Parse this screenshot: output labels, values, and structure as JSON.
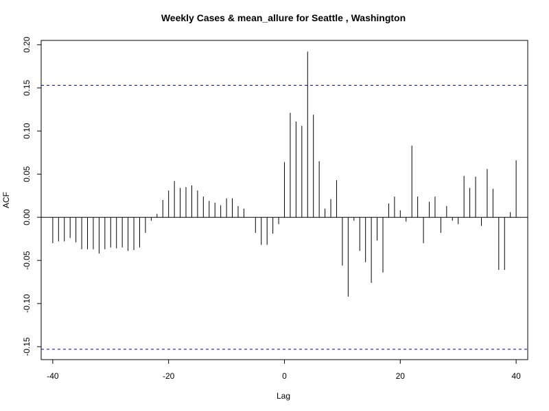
{
  "chart_data": {
    "type": "bar",
    "title": "Weekly Cases & mean_allure for Seattle , Washington",
    "xlabel": "Lag",
    "ylabel": "ACF",
    "xlim": [
      -42,
      42
    ],
    "ylim": [
      -0.165,
      0.205
    ],
    "x_ticks": [
      -40,
      -20,
      0,
      20,
      40
    ],
    "x_tick_labels": [
      "-40",
      "-20",
      "0",
      "20",
      "40"
    ],
    "y_ticks": [
      -0.15,
      -0.1,
      -0.05,
      0.0,
      0.05,
      0.1,
      0.15,
      0.2
    ],
    "y_tick_labels": [
      "-0.15",
      "-0.10",
      "-0.05",
      "0.00",
      "0.05",
      "0.10",
      "0.15",
      "0.20"
    ],
    "confidence_bound": 0.153,
    "bound_color": "#0000cc",
    "bar_color": "#000000",
    "grid": false,
    "x": [
      -40,
      -39,
      -38,
      -37,
      -36,
      -35,
      -34,
      -33,
      -32,
      -31,
      -30,
      -29,
      -28,
      -27,
      -26,
      -25,
      -24,
      -23,
      -22,
      -21,
      -20,
      -19,
      -18,
      -17,
      -16,
      -15,
      -14,
      -13,
      -12,
      -11,
      -10,
      -9,
      -8,
      -7,
      -6,
      -5,
      -4,
      -3,
      -2,
      -1,
      0,
      1,
      2,
      3,
      4,
      5,
      6,
      7,
      8,
      9,
      10,
      11,
      12,
      13,
      14,
      15,
      16,
      17,
      18,
      19,
      20,
      21,
      22,
      23,
      24,
      25,
      26,
      27,
      28,
      29,
      30,
      31,
      32,
      33,
      34,
      35,
      36,
      37,
      38,
      39,
      40
    ],
    "values": [
      -0.03,
      -0.028,
      -0.028,
      -0.024,
      -0.029,
      -0.037,
      -0.037,
      -0.037,
      -0.042,
      -0.037,
      -0.035,
      -0.036,
      -0.035,
      -0.039,
      -0.038,
      -0.035,
      -0.018,
      -0.004,
      0.004,
      0.02,
      0.031,
      0.042,
      0.034,
      0.035,
      0.037,
      0.031,
      0.024,
      0.019,
      0.017,
      0.014,
      0.022,
      0.022,
      0.013,
      0.01,
      0.0,
      -0.018,
      -0.032,
      -0.032,
      -0.019,
      -0.008,
      0.064,
      0.121,
      0.111,
      0.106,
      0.192,
      0.119,
      0.065,
      0.01,
      0.021,
      0.043,
      -0.056,
      -0.092,
      -0.004,
      -0.039,
      -0.052,
      -0.076,
      -0.027,
      -0.064,
      0.016,
      0.024,
      0.008,
      -0.005,
      0.083,
      0.024,
      -0.03,
      0.018,
      0.024,
      -0.018,
      0.013,
      -0.004,
      -0.008,
      0.048,
      0.034,
      0.047,
      -0.01,
      0.056,
      0.033,
      -0.061,
      -0.061,
      0.006,
      0.066
    ]
  },
  "colors": {
    "background": "#ffffff",
    "axis": "#000000",
    "bars": "#000000",
    "bounds": "#0000cc"
  }
}
